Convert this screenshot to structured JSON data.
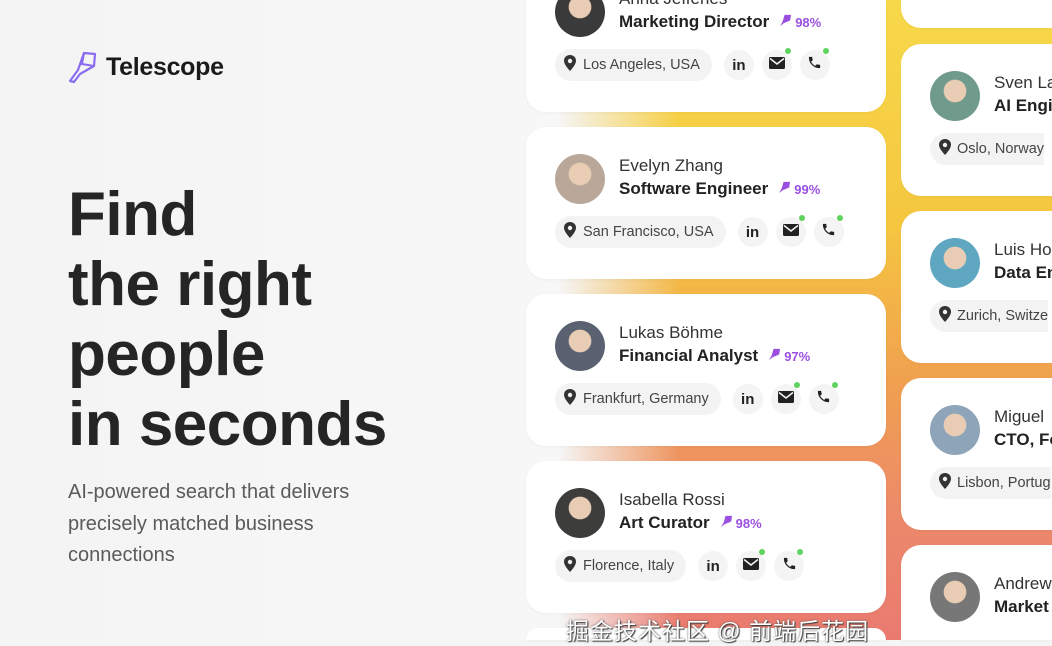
{
  "brand": {
    "name": "Telescope",
    "accent": "#8a6cf0"
  },
  "hero": {
    "lines": [
      "Find",
      "the right",
      "people",
      "in seconds"
    ],
    "subtitle": "AI-powered search that delivers precisely matched business connections"
  },
  "colors": {
    "match": "#9b4fe0",
    "online_dot": "#5fd35f"
  },
  "cards_left": [
    {
      "name": "Anna Jefferies",
      "role": "Marketing Director",
      "match": "98%",
      "location": "Los Angeles, USA",
      "avatar": "#3a3a3a"
    },
    {
      "name": "Evelyn Zhang",
      "role": "Software Engineer",
      "match": "99%",
      "location": "San Francisco, USA",
      "avatar": "#b9a89a"
    },
    {
      "name": "Lukas Böhme",
      "role": "Financial Analyst",
      "match": "97%",
      "location": "Frankfurt, Germany",
      "avatar": "#5a6272"
    },
    {
      "name": "Isabella Rossi",
      "role": "Art Curator",
      "match": "98%",
      "location": "Florence, Italy",
      "avatar": "#3d3d3b"
    }
  ],
  "cards_right": [
    {
      "name": "Sven La",
      "role": "AI Engi",
      "location": "Oslo, Norway",
      "avatar": "#6f9a8c"
    },
    {
      "name": "Luis Ho",
      "role": "Data En",
      "location": "Zurich, Switze",
      "avatar": "#5fa6c0"
    },
    {
      "name": "Miguel",
      "role": "CTO, Fo",
      "location": "Lisbon, Portug",
      "avatar": "#8ea4b8"
    },
    {
      "name": "Andrew",
      "role": "Market",
      "location": "",
      "avatar": "#777"
    }
  ],
  "contact_icons": [
    "linkedin-icon",
    "mail-icon",
    "phone-icon"
  ],
  "linkedin_label": "in",
  "watermark": "掘金技术社区 @ 前端后花园"
}
